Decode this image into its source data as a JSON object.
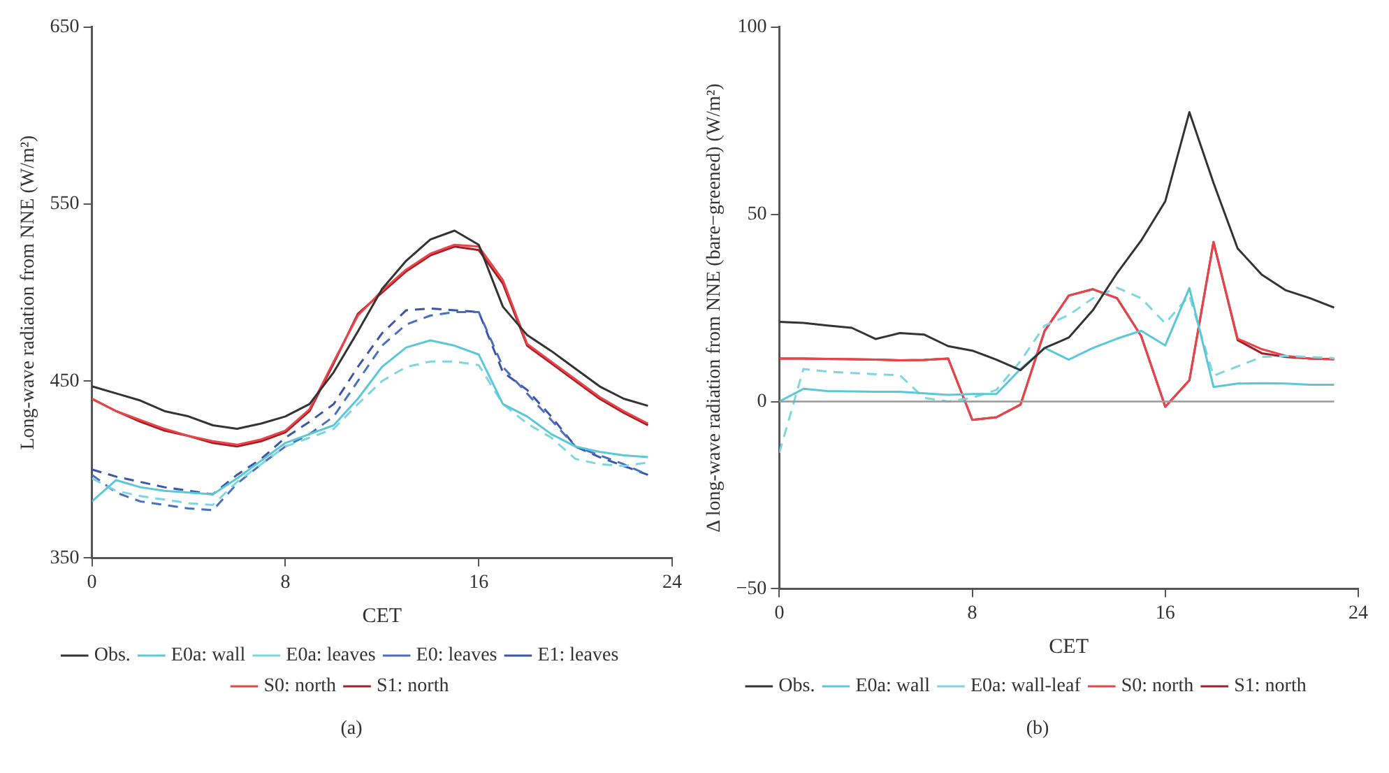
{
  "chart_data": [
    {
      "type": "line",
      "xlabel": "CET",
      "ylabel": "Long-wave radiation from NNE (W/m²)",
      "x": [
        0,
        1,
        2,
        3,
        4,
        5,
        6,
        7,
        8,
        9,
        10,
        11,
        12,
        13,
        14,
        15,
        16,
        17,
        18,
        19,
        20,
        21,
        22,
        23
      ],
      "xlim": [
        0,
        24
      ],
      "xticks": [
        0,
        8,
        16,
        24
      ],
      "ylim": [
        350,
        650
      ],
      "yticks": [
        350,
        450,
        550,
        650
      ],
      "grid": false,
      "legend": "bottom",
      "marker": "none",
      "annotations": [
        "(a)"
      ],
      "series": [
        {
          "name": "Obs.",
          "color": "#333333",
          "line_style": "solid",
          "values": [
            447,
            443,
            439,
            433,
            430,
            425,
            423,
            426,
            430,
            437,
            455,
            478,
            502,
            518,
            530,
            535,
            527,
            492,
            476,
            467,
            457,
            447,
            440,
            436
          ]
        },
        {
          "name": "E0a: wall",
          "color": "#5bc8d8",
          "line_style": "solid",
          "values": [
            382,
            394,
            390,
            388,
            387,
            386,
            395,
            405,
            415,
            420,
            425,
            440,
            458,
            469,
            473,
            470,
            465,
            437,
            430,
            420,
            413,
            410,
            408,
            407
          ]
        },
        {
          "name": "E0a: leaves",
          "color": "#7fd6e3",
          "line_style": "dashed",
          "values": [
            395,
            388,
            385,
            383,
            381,
            380,
            393,
            403,
            413,
            418,
            423,
            437,
            450,
            458,
            461,
            461,
            459,
            437,
            426,
            418,
            406,
            403,
            402,
            404
          ]
        },
        {
          "name": "E0: leaves",
          "color": "#4a6fc0",
          "line_style": "dashed",
          "values": [
            397,
            387,
            382,
            380,
            378,
            377,
            392,
            403,
            413,
            420,
            430,
            450,
            470,
            482,
            487,
            489,
            489,
            458,
            443,
            428,
            413,
            408,
            403,
            397
          ]
        },
        {
          "name": "E1: leaves",
          "color": "#3b55a8",
          "line_style": "dashed",
          "values": [
            400,
            396,
            393,
            390,
            388,
            386,
            397,
            406,
            418,
            427,
            437,
            458,
            477,
            490,
            491,
            490,
            489,
            455,
            445,
            430,
            413,
            407,
            402,
            397
          ]
        },
        {
          "name": "S0: north",
          "color": "#e8444a",
          "line_style": "solid",
          "values": [
            440,
            433,
            428,
            423,
            419,
            416,
            414,
            417,
            422,
            434,
            461,
            487,
            501,
            513,
            522,
            527,
            526,
            507,
            471,
            461,
            451,
            441,
            433,
            426
          ]
        },
        {
          "name": "S1: north",
          "color": "#a51c24",
          "line_style": "solid",
          "values": [
            440,
            433,
            427,
            422,
            419,
            415,
            413,
            416,
            421,
            433,
            460,
            488,
            500,
            512,
            521,
            526,
            524,
            505,
            470,
            460,
            450,
            440,
            432,
            425
          ]
        }
      ]
    },
    {
      "type": "line",
      "xlabel": "CET",
      "ylabel": "Δ long-wave radiation from NNE (bare−greened) (W/m²)",
      "x": [
        0,
        1,
        2,
        3,
        4,
        5,
        6,
        7,
        8,
        9,
        10,
        11,
        12,
        13,
        14,
        15,
        16,
        17,
        18,
        19,
        20,
        21,
        22,
        23
      ],
      "xlim": [
        0,
        24
      ],
      "xticks": [
        0,
        8,
        16,
        24
      ],
      "ylim": [
        -50,
        100
      ],
      "yticks": [
        {
          "value": -50,
          "label": "−50"
        },
        0,
        50,
        100
      ],
      "grid": false,
      "legend": "bottom",
      "marker": "none",
      "annotations": [
        "(b)"
      ],
      "ref_lines": [
        {
          "axis": "y",
          "value": 0,
          "label": null,
          "color": "#999999",
          "line_style": "solid"
        }
      ],
      "series": [
        {
          "name": "Obs.",
          "color": "#333333",
          "line_style": "solid",
          "values": [
            21.3,
            21,
            20.3,
            19.7,
            16.7,
            18.3,
            17.9,
            14.8,
            13.6,
            11.2,
            8.4,
            14.3,
            17.1,
            24.4,
            34.3,
            43,
            53.5,
            77.3,
            58.4,
            40.9,
            33.9,
            29.7,
            27.6,
            25.1
          ]
        },
        {
          "name": "E0a: wall",
          "color": "#5bc8d8",
          "line_style": "solid",
          "values": [
            0,
            3.4,
            2.8,
            2.7,
            2.6,
            2.6,
            2.2,
            1.8,
            2,
            2,
            8.7,
            14.3,
            11.2,
            14.3,
            16.8,
            18.9,
            15,
            30.3,
            3.9,
            4.8,
            4.9,
            4.8,
            4.5,
            4.5
          ]
        },
        {
          "name": "E0a: wall-leaf",
          "color": "#7fd6e3",
          "line_style": "dashed",
          "values": [
            -13.7,
            8.7,
            8,
            7.6,
            7.3,
            7,
            1,
            0,
            1,
            3.1,
            10.8,
            20.3,
            23.1,
            27.6,
            30.4,
            27.6,
            20.9,
            28.3,
            6.9,
            9.4,
            11.9,
            12.2,
            11.9,
            11.6
          ]
        },
        {
          "name": "S0: north",
          "color": "#e8444a",
          "line_style": "solid",
          "values": [
            11.5,
            11.5,
            11.4,
            11.3,
            11.2,
            11,
            11.1,
            11.5,
            -4.9,
            -4.2,
            -0.8,
            18.9,
            28.3,
            30,
            27.6,
            17.5,
            -1.4,
            5.7,
            42.6,
            16.8,
            14,
            12.2,
            11.5,
            11.3
          ]
        },
        {
          "name": "S1: north",
          "color": "#a51c24",
          "line_style": "solid",
          "values": [
            11.5,
            11.5,
            11.4,
            11.3,
            11.2,
            11,
            11.1,
            11.5,
            -4.9,
            -4.2,
            -0.8,
            18.9,
            28.3,
            30,
            27.6,
            17.5,
            -1.4,
            5.7,
            42.6,
            16.4,
            12.9,
            11.9,
            11.5,
            11.3
          ]
        }
      ]
    }
  ]
}
